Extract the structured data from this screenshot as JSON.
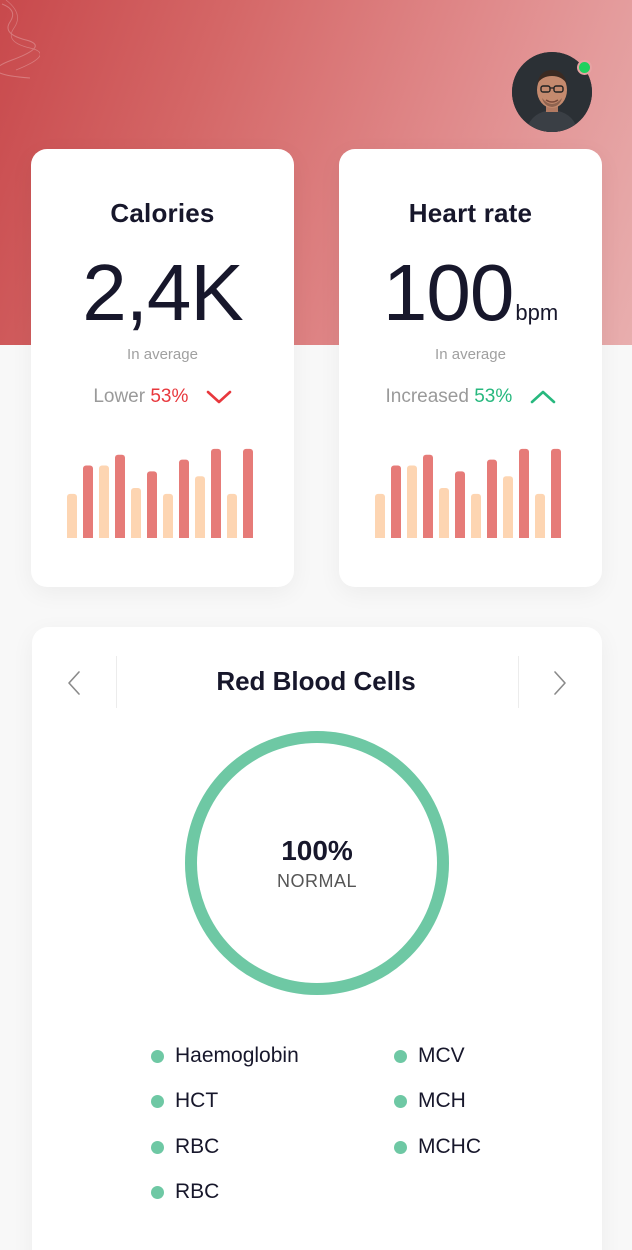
{
  "user": {
    "online": true
  },
  "colors": {
    "hero_start": "#c8494c",
    "hero_end": "#e8aeae",
    "bar_primary": "#e67b78",
    "bar_secondary": "#fdd5b2",
    "trend_down": "#e8383d",
    "trend_up": "#27b87e",
    "ring": "#6ec8a4",
    "online": "#1ed15f"
  },
  "cards": {
    "calories": {
      "title": "Calories",
      "value": "2,4K",
      "subtitle": "In average",
      "trend_label": "Lower",
      "trend_pct": "53%",
      "trend_direction": "down",
      "bars": [
        {
          "level": 0.45,
          "tone": "light"
        },
        {
          "level": 0.74,
          "tone": "dark"
        },
        {
          "level": 0.74,
          "tone": "light"
        },
        {
          "level": 0.85,
          "tone": "dark"
        },
        {
          "level": 0.51,
          "tone": "light"
        },
        {
          "level": 0.68,
          "tone": "dark"
        },
        {
          "level": 0.45,
          "tone": "light"
        },
        {
          "level": 0.8,
          "tone": "dark"
        },
        {
          "level": 0.63,
          "tone": "light"
        },
        {
          "level": 0.91,
          "tone": "dark"
        },
        {
          "level": 0.45,
          "tone": "light"
        },
        {
          "level": 0.91,
          "tone": "dark"
        }
      ]
    },
    "heart_rate": {
      "title": "Heart rate",
      "value": "100",
      "unit": "bpm",
      "subtitle": "In average",
      "trend_label": "Increased",
      "trend_pct": "53%",
      "trend_direction": "up",
      "bars": [
        {
          "level": 0.45,
          "tone": "light"
        },
        {
          "level": 0.74,
          "tone": "dark"
        },
        {
          "level": 0.74,
          "tone": "light"
        },
        {
          "level": 0.85,
          "tone": "dark"
        },
        {
          "level": 0.51,
          "tone": "light"
        },
        {
          "level": 0.68,
          "tone": "dark"
        },
        {
          "level": 0.45,
          "tone": "light"
        },
        {
          "level": 0.8,
          "tone": "dark"
        },
        {
          "level": 0.63,
          "tone": "light"
        },
        {
          "level": 0.91,
          "tone": "dark"
        },
        {
          "level": 0.45,
          "tone": "light"
        },
        {
          "level": 0.91,
          "tone": "dark"
        }
      ]
    }
  },
  "rbc": {
    "title": "Red Blood Cells",
    "prev_icon": "chevron-left-icon",
    "next_icon": "chevron-right-icon",
    "percent": "100%",
    "status": "NORMAL",
    "progress": 1.0,
    "legend_left": [
      "Haemoglobin",
      "HCT",
      "RBC",
      "RBC"
    ],
    "legend_right": [
      "MCV",
      "MCH",
      "MCHC"
    ]
  }
}
